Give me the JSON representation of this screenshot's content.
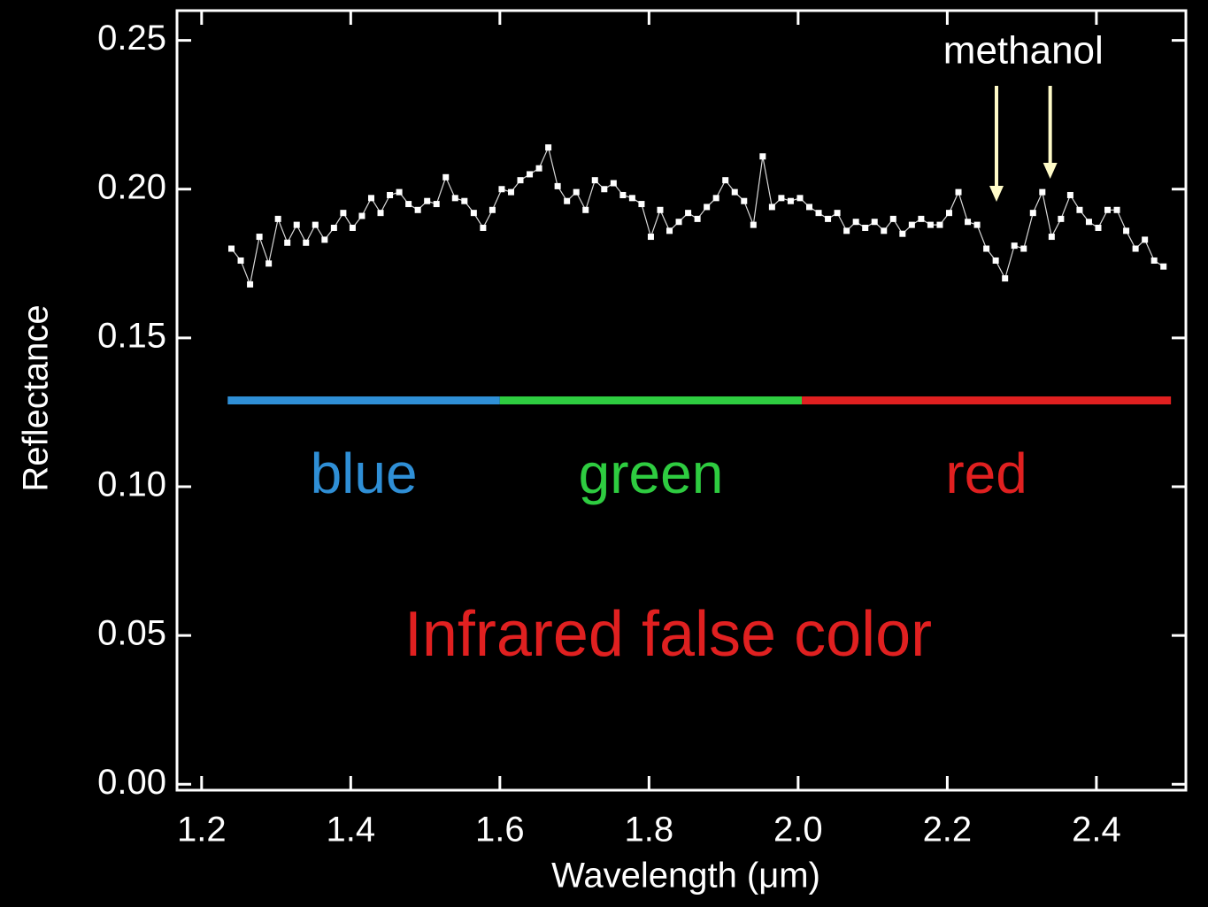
{
  "chart_data": {
    "type": "line",
    "x_label": "Wavelength (μm)",
    "y_label": "Reflectance",
    "xlim": [
      1.167,
      2.52
    ],
    "ylim": [
      -0.002,
      0.26
    ],
    "xticks": [
      1.2,
      1.4,
      1.6,
      1.8,
      {
        "value": 2,
        "label": "2.0"
      },
      2.2,
      2.4
    ],
    "yticks": [
      {
        "value": 0,
        "label": "0.00"
      },
      0.05,
      {
        "value": 0.1,
        "label": "0.10"
      },
      0.15,
      {
        "value": 0.2,
        "label": "0.20"
      },
      0.25
    ],
    "color": "#ffffff",
    "x": [
      1.24,
      1.2525,
      1.265,
      1.2775,
      1.29,
      1.3025,
      1.315,
      1.3275,
      1.34,
      1.3525,
      1.365,
      1.3775,
      1.39,
      1.4025,
      1.415,
      1.4275,
      1.44,
      1.4525,
      1.465,
      1.4775,
      1.49,
      1.5025,
      1.515,
      1.5275,
      1.54,
      1.5525,
      1.565,
      1.5775,
      1.59,
      1.6025,
      1.615,
      1.6275,
      1.64,
      1.6525,
      1.665,
      1.6775,
      1.69,
      1.7025,
      1.715,
      1.7275,
      1.74,
      1.7525,
      1.765,
      1.7775,
      1.79,
      1.8025,
      1.815,
      1.8275,
      1.84,
      1.8525,
      1.865,
      1.8775,
      1.89,
      1.9025,
      1.915,
      1.9275,
      1.94,
      1.9525,
      1.965,
      1.9775,
      1.99,
      2.0025,
      2.015,
      2.0275,
      2.04,
      2.0525,
      2.065,
      2.0775,
      2.09,
      2.1025,
      2.115,
      2.1275,
      2.14,
      2.1525,
      2.165,
      2.1775,
      2.19,
      2.2025,
      2.215,
      2.2275,
      2.24,
      2.2525,
      2.265,
      2.2775,
      2.29,
      2.3025,
      2.315,
      2.3275,
      2.34,
      2.3525,
      2.365,
      2.3775,
      2.39,
      2.4025,
      2.415,
      2.4275,
      2.44,
      2.4525,
      2.465,
      2.4775,
      2.49
    ],
    "values": [
      0.18,
      0.176,
      0.168,
      0.184,
      0.175,
      0.19,
      0.182,
      0.188,
      0.182,
      0.188,
      0.183,
      0.187,
      0.192,
      0.187,
      0.191,
      0.197,
      0.192,
      0.198,
      0.199,
      0.195,
      0.193,
      0.196,
      0.195,
      0.204,
      0.197,
      0.196,
      0.192,
      0.187,
      0.193,
      0.2,
      0.199,
      0.203,
      0.205,
      0.207,
      0.214,
      0.201,
      0.196,
      0.199,
      0.193,
      0.203,
      0.2,
      0.202,
      0.198,
      0.197,
      0.195,
      0.184,
      0.193,
      0.186,
      0.189,
      0.192,
      0.19,
      0.194,
      0.197,
      0.203,
      0.199,
      0.196,
      0.188,
      0.211,
      0.194,
      0.197,
      0.196,
      0.197,
      0.194,
      0.192,
      0.19,
      0.192,
      0.186,
      0.189,
      0.187,
      0.189,
      0.186,
      0.19,
      0.185,
      0.188,
      0.19,
      0.188,
      0.188,
      0.192,
      0.199,
      0.189,
      0.188,
      0.18,
      0.176,
      0.17,
      0.181,
      0.18,
      0.192,
      0.199,
      0.184,
      0.19,
      0.198,
      0.193,
      0.189,
      0.187,
      0.193,
      0.193,
      0.186,
      0.18,
      0.183,
      0.176,
      0.174
    ],
    "bands": [
      {
        "label": "blue",
        "color": "#2f8fd6",
        "start": 1.235,
        "end": 1.6,
        "level": 0.129
      },
      {
        "label": "green",
        "color": "#2ecc40",
        "start": 1.6,
        "end": 2.005,
        "level": 0.129
      },
      {
        "label": "red",
        "color": "#e02020",
        "start": 2.005,
        "end": 2.5,
        "level": 0.129
      }
    ],
    "arrow_label": "methanol",
    "arrows": [
      2.266,
      2.338
    ],
    "arrow_color": "#fffbc8",
    "note": "Infrared false color",
    "note_color": "#e02020"
  }
}
